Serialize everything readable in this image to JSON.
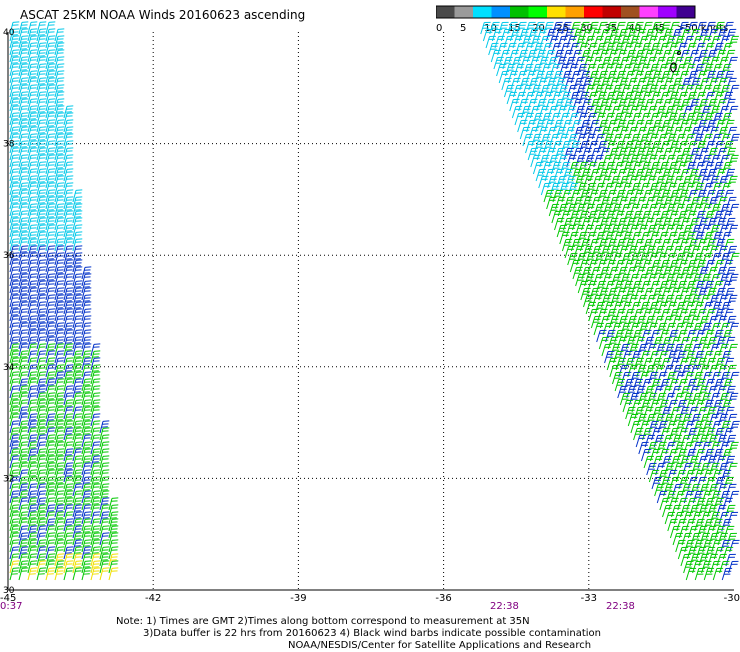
{
  "title": "ASCAT 25KM NOAA Winds 20160623 ascending",
  "legend": {
    "labels": [
      "0",
      "5",
      "10",
      "15",
      "20",
      "25",
      "30",
      "35",
      "40",
      "45",
      ">50 knots"
    ],
    "colors": [
      "#4a4a4a",
      "#9a9a9a",
      "#00e0ff",
      "#0090ff",
      "#00c000",
      "#00ff00",
      "#ffe000",
      "#ffa000",
      "#ff0000",
      "#c00000",
      "#a05020",
      "#ff40ff",
      "#a000ff",
      "#400090"
    ]
  },
  "axes": {
    "lon_labels": [
      "-45",
      "-42",
      "-39",
      "-36",
      "-33",
      "-30"
    ],
    "lat_labels": [
      "40",
      "38",
      "36",
      "34",
      "32",
      "30"
    ],
    "time_labels": [
      "0:37",
      "22:38",
      "22:38"
    ]
  },
  "wind_colors": {
    "light": "#00c8e8",
    "medium": "#0030c8",
    "strong": "#00c800",
    "very_strong": "#f0e000",
    "contaminated": "#000000"
  },
  "notes": {
    "line1": "Note: 1) Times are GMT 2)Times along bottom correspond to measurement at 35N",
    "line2": "3)Data buffer is 22 hrs from 20160623 4) Black wind barbs indicate possible contamination",
    "line3": "NOAA/NESDIS/Center for Satellite Applications and Research"
  }
}
